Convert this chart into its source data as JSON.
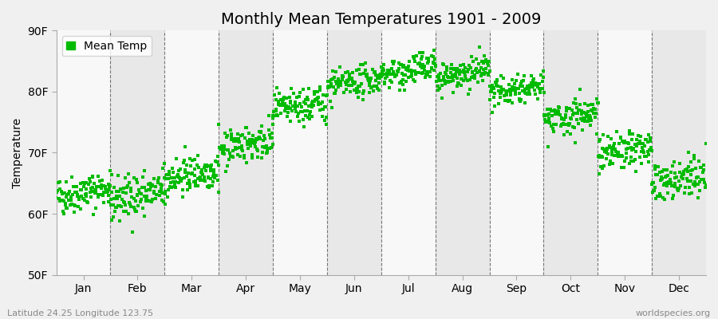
{
  "title": "Monthly Mean Temperatures 1901 - 2009",
  "ylabel": "Temperature",
  "footer_left": "Latitude 24.25 Longitude 123.75",
  "footer_right": "worldspecies.org",
  "legend_label": "Mean Temp",
  "ylim": [
    50,
    90
  ],
  "yticks": [
    50,
    60,
    70,
    80,
    90
  ],
  "ytick_labels": [
    "50F",
    "60F",
    "70F",
    "80F",
    "90F"
  ],
  "months": [
    "Jan",
    "Feb",
    "Mar",
    "Apr",
    "May",
    "Jun",
    "Jul",
    "Aug",
    "Sep",
    "Oct",
    "Nov",
    "Dec"
  ],
  "mean_temps_f": [
    63.5,
    63.0,
    66.5,
    71.5,
    77.5,
    81.5,
    83.5,
    83.0,
    80.5,
    76.0,
    70.5,
    65.5
  ],
  "trend_per_109yr": [
    1.5,
    1.5,
    1.5,
    1.5,
    1.5,
    1.5,
    1.5,
    1.5,
    1.5,
    1.5,
    1.5,
    1.5
  ],
  "std_temps": [
    1.5,
    1.8,
    1.5,
    1.5,
    1.5,
    1.2,
    1.2,
    1.2,
    1.2,
    1.5,
    1.5,
    1.8
  ],
  "n_years": 109,
  "start_year": 1901,
  "dot_color": "#00BB00",
  "dot_size": 5,
  "background_color": "#f0f0f0",
  "plot_bg_color_light": "#f8f8f8",
  "plot_bg_color_dark": "#e8e8e8",
  "grid_color": "#777777",
  "title_fontsize": 14,
  "axis_fontsize": 10,
  "tick_fontsize": 10,
  "seed": 42
}
